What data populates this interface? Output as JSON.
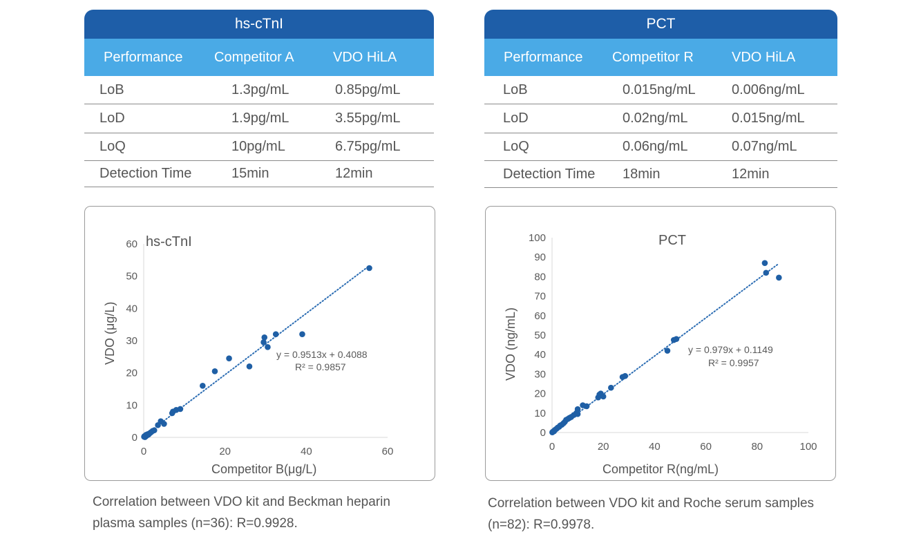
{
  "tables": [
    {
      "title": "hs-cTnI",
      "headers": [
        "Performance",
        "Competitor A",
        "VDO  HiLA"
      ],
      "rows": [
        [
          "LoB",
          "1.3pg/mL",
          "0.85pg/mL"
        ],
        [
          "LoD",
          "1.9pg/mL",
          "3.55pg/mL"
        ],
        [
          "LoQ",
          "10pg/mL",
          "6.75pg/mL"
        ],
        [
          "Detection Time",
          "15min",
          "12min"
        ]
      ]
    },
    {
      "title": "PCT",
      "headers": [
        "Performance",
        "Competitor R",
        "VDO  HiLA"
      ],
      "rows": [
        [
          "LoB",
          "0.015ng/mL",
          "0.006ng/mL"
        ],
        [
          "LoD",
          "0.02ng/mL",
          "0.015ng/mL"
        ],
        [
          "LoQ",
          "0.06ng/mL",
          "0.07ng/mL"
        ],
        [
          "Detection Time",
          "18min",
          "12min"
        ]
      ]
    }
  ],
  "chart_data": [
    {
      "type": "scatter",
      "title": "hs-cTnI",
      "xlabel": "Competitor B(μg/L)",
      "ylabel": "VDO (μg/L)",
      "xlim": [
        0,
        60
      ],
      "ylim": [
        0,
        60
      ],
      "xticks": [
        "0",
        "20",
        "40",
        "60"
      ],
      "yticks": [
        "0",
        "10",
        "20",
        "30",
        "40",
        "50",
        "60"
      ],
      "trendline": {
        "slope": 0.9513,
        "intercept": 0.4088,
        "x_range": [
          0,
          55.5
        ]
      },
      "equation": "y = 0.9513x + 0.4088",
      "r2": "R² = 0.9857",
      "points": [
        [
          0.1,
          0.2
        ],
        [
          0.2,
          0.4
        ],
        [
          0.3,
          0.1
        ],
        [
          0.4,
          0.5
        ],
        [
          0.5,
          0.3
        ],
        [
          0.6,
          0.8
        ],
        [
          0.8,
          0.6
        ],
        [
          1.0,
          1.0
        ],
        [
          1.2,
          0.9
        ],
        [
          1.5,
          1.3
        ],
        [
          1.8,
          1.6
        ],
        [
          2.2,
          2.0
        ],
        [
          2.6,
          2.2
        ],
        [
          3.5,
          3.8
        ],
        [
          4.2,
          5.0
        ],
        [
          5.0,
          4.2
        ],
        [
          7.0,
          7.5
        ],
        [
          7.2,
          8.0
        ],
        [
          8.0,
          8.5
        ],
        [
          9.0,
          8.8
        ],
        [
          14.5,
          16.0
        ],
        [
          17.5,
          20.5
        ],
        [
          21.0,
          24.5
        ],
        [
          26.0,
          22.0
        ],
        [
          29.5,
          29.5
        ],
        [
          29.7,
          31.0
        ],
        [
          30.5,
          28.0
        ],
        [
          32.5,
          32.0
        ],
        [
          39.0,
          32.0
        ],
        [
          55.5,
          52.5
        ]
      ]
    },
    {
      "type": "scatter",
      "title": "PCT",
      "xlabel": "Competitor R(ng/mL)",
      "ylabel": "VDO (ng/mL)",
      "xlim": [
        0,
        100
      ],
      "ylim": [
        0,
        100
      ],
      "xticks": [
        "0",
        "20",
        "40",
        "60",
        "80",
        "100"
      ],
      "yticks": [
        "0",
        "10",
        "20",
        "30",
        "40",
        "50",
        "60",
        "70",
        "80",
        "90",
        "100"
      ],
      "trendline": {
        "slope": 0.979,
        "intercept": 0.1149,
        "x_range": [
          0,
          88
        ]
      },
      "equation": "y = 0.979x + 0.1149",
      "r2": "R² = 0.9957",
      "points": [
        [
          0.1,
          0.1
        ],
        [
          0.3,
          0.4
        ],
        [
          0.5,
          0.6
        ],
        [
          0.8,
          0.7
        ],
        [
          1.0,
          1.2
        ],
        [
          1.3,
          1.5
        ],
        [
          1.8,
          2.0
        ],
        [
          2.2,
          2.5
        ],
        [
          2.8,
          3.0
        ],
        [
          3.2,
          3.6
        ],
        [
          3.8,
          4.0
        ],
        [
          4.5,
          4.8
        ],
        [
          5.0,
          5.5
        ],
        [
          5.5,
          6.5
        ],
        [
          6.2,
          7.0
        ],
        [
          6.8,
          7.5
        ],
        [
          7.5,
          8.0
        ],
        [
          8.5,
          9.0
        ],
        [
          9.5,
          10.0
        ],
        [
          10.0,
          9.5
        ],
        [
          10.0,
          12.0
        ],
        [
          12.0,
          14.0
        ],
        [
          13.5,
          13.5
        ],
        [
          18.0,
          18.0
        ],
        [
          18.5,
          19.5
        ],
        [
          19.0,
          20.0
        ],
        [
          20.0,
          18.5
        ],
        [
          23.0,
          23.0
        ],
        [
          27.5,
          28.5
        ],
        [
          28.5,
          29.0
        ],
        [
          45.0,
          42.0
        ],
        [
          47.5,
          47.5
        ],
        [
          48.5,
          48.0
        ],
        [
          83.0,
          87.0
        ],
        [
          83.5,
          82.0
        ],
        [
          88.5,
          79.5
        ]
      ]
    }
  ],
  "captions": [
    {
      "line1": "Correlation between VDO kit and Beckman heparin",
      "line2": "plasma samples (n=36): R=0.9928."
    },
    {
      "line1": "Correlation between VDO kit and Roche serum samples",
      "line2": "(n=82): R=0.9978."
    }
  ],
  "colors": {
    "title_bar": "#1e5ea8",
    "header_bar": "#4aaae6",
    "point": "#1f5fa5",
    "trend": "#2c6db3"
  }
}
